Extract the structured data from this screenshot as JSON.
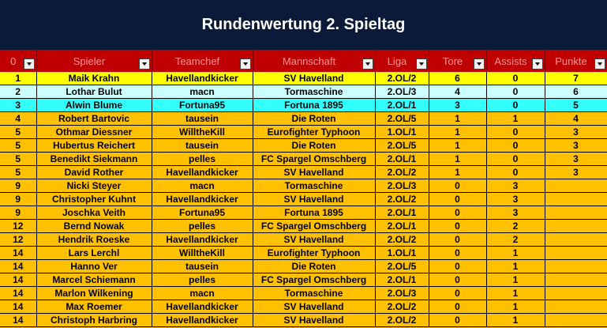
{
  "title": "Rundenwertung 2. Spieltag",
  "headers": [
    "0",
    "Spieler",
    "Teamchef",
    "Mannschaft",
    "Liga",
    "Tore",
    "Assists",
    "Punkte"
  ],
  "rows": [
    [
      "1",
      "Maik Krahn",
      "Havellandkicker",
      "SV Havelland",
      "2.OL/2",
      "6",
      "0",
      "7"
    ],
    [
      "2",
      "Lothar Bulut",
      "macn",
      "Tormaschine",
      "2.OL/3",
      "4",
      "0",
      "6"
    ],
    [
      "3",
      "Alwin Blume",
      "Fortuna95",
      "Fortuna 1895",
      "2.OL/1",
      "3",
      "0",
      "5"
    ],
    [
      "4",
      "Robert Bartovic",
      "tausein",
      "Die Roten",
      "2.OL/5",
      "1",
      "1",
      "4"
    ],
    [
      "5",
      "Othmar Diessner",
      "WilltheKill",
      "Eurofighter Typhoon",
      "1.OL/1",
      "1",
      "0",
      "3"
    ],
    [
      "5",
      "Hubertus Reichert",
      "tausein",
      "Die Roten",
      "2.OL/5",
      "1",
      "0",
      "3"
    ],
    [
      "5",
      "Benedikt Siekmann",
      "pelles",
      "FC Spargel Omschberg",
      "2.OL/1",
      "1",
      "0",
      "3"
    ],
    [
      "5",
      "David Rother",
      "Havellandkicker",
      "SV Havelland",
      "2.OL/2",
      "1",
      "0",
      "3"
    ],
    [
      "9",
      "Nicki Steyer",
      "macn",
      "Tormaschine",
      "2.OL/3",
      "0",
      "3",
      ""
    ],
    [
      "9",
      "Christopher Kuhnt",
      "Havellandkicker",
      "SV Havelland",
      "2.OL/2",
      "0",
      "3",
      ""
    ],
    [
      "9",
      "Joschka Veith",
      "Fortuna95",
      "Fortuna 1895",
      "2.OL/1",
      "0",
      "3",
      ""
    ],
    [
      "12",
      "Bernd Nowak",
      "pelles",
      "FC Spargel Omschberg",
      "2.OL/1",
      "0",
      "2",
      ""
    ],
    [
      "12",
      "Hendrik Roeske",
      "Havellandkicker",
      "SV Havelland",
      "2.OL/2",
      "0",
      "2",
      ""
    ],
    [
      "14",
      "Lars Lerchl",
      "WilltheKill",
      "Eurofighter Typhoon",
      "1.OL/1",
      "0",
      "1",
      ""
    ],
    [
      "14",
      "Hanno Ver",
      "tausein",
      "Die Roten",
      "2.OL/5",
      "0",
      "1",
      ""
    ],
    [
      "14",
      "Marcel Schiemann",
      "pelles",
      "FC Spargel Omschberg",
      "2.OL/1",
      "0",
      "1",
      ""
    ],
    [
      "14",
      "Marlon Wilkening",
      "macn",
      "Tormaschine",
      "2.OL/3",
      "0",
      "1",
      ""
    ],
    [
      "14",
      "Max Roemer",
      "Havellandkicker",
      "SV Havelland",
      "2.OL/2",
      "0",
      "1",
      ""
    ],
    [
      "14",
      "Christoph Harbring",
      "Havellandkicker",
      "SV Havelland",
      "2.OL/2",
      "0",
      "1",
      ""
    ]
  ],
  "colors": {
    "title_bg": "#0c1a3a",
    "header_bg": "#c00000",
    "rank1": "#ffff00",
    "rank2": "#ccffff",
    "rank3": "#33ffff",
    "rest": "#ffc000"
  }
}
